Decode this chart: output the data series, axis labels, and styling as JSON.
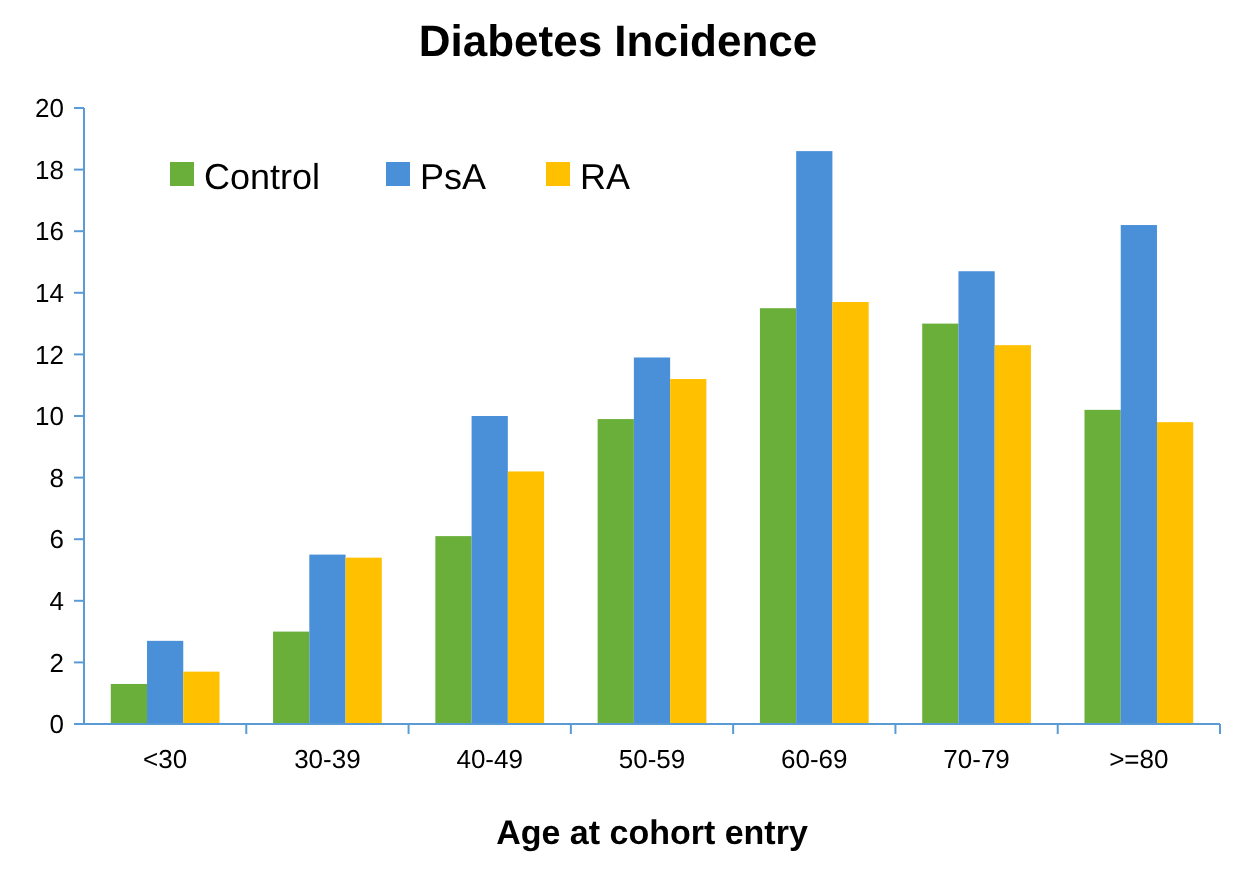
{
  "chart_data": {
    "type": "bar",
    "title": "Diabetes Incidence",
    "xlabel": "Age at cohort entry",
    "categories": [
      "<30",
      "30-39",
      "40-49",
      "50-59",
      "60-69",
      "70-79",
      ">=80"
    ],
    "series": [
      {
        "name": "Control",
        "color": "#6aaf3a",
        "values": [
          1.3,
          3.0,
          6.1,
          9.9,
          13.5,
          13.0,
          10.2
        ]
      },
      {
        "name": "PsA",
        "color": "#4a90d9",
        "values": [
          2.7,
          5.5,
          10.0,
          11.9,
          18.6,
          14.7,
          16.2
        ]
      },
      {
        "name": "RA",
        "color": "#ffc000",
        "values": [
          1.7,
          5.4,
          8.2,
          11.2,
          13.7,
          12.3,
          9.8
        ]
      }
    ],
    "ylim": [
      0,
      20
    ],
    "yticks": [
      0,
      2,
      4,
      6,
      8,
      10,
      12,
      14,
      16,
      18,
      20
    ],
    "grid": false,
    "legend": "top left"
  }
}
